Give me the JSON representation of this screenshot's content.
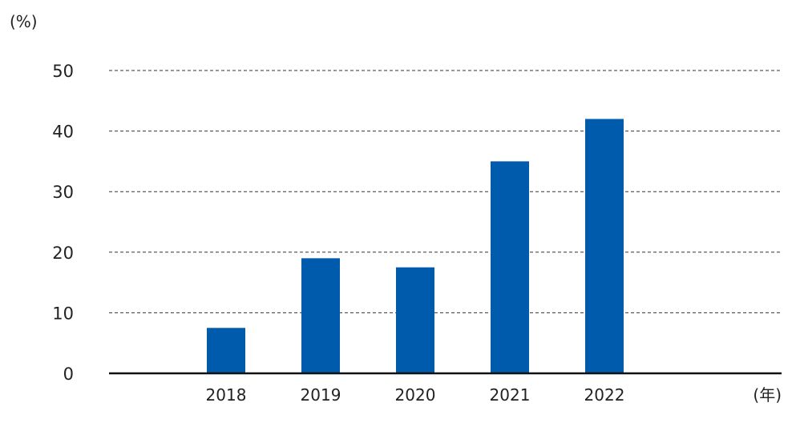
{
  "chart_data": {
    "type": "bar",
    "title": "",
    "y_unit_label": "(%)",
    "x_unit_label": "(年)",
    "categories": [
      "2018",
      "2019",
      "2020",
      "2021",
      "2022"
    ],
    "values": [
      7.5,
      19,
      17.5,
      35,
      42
    ],
    "ylim": [
      0,
      50
    ],
    "yticks": [
      0,
      10,
      20,
      30,
      40,
      50
    ],
    "grid": "horizontal-dashed",
    "bar_color": "#005BAC",
    "axis_color": "#111111",
    "grid_color": "#333333"
  }
}
